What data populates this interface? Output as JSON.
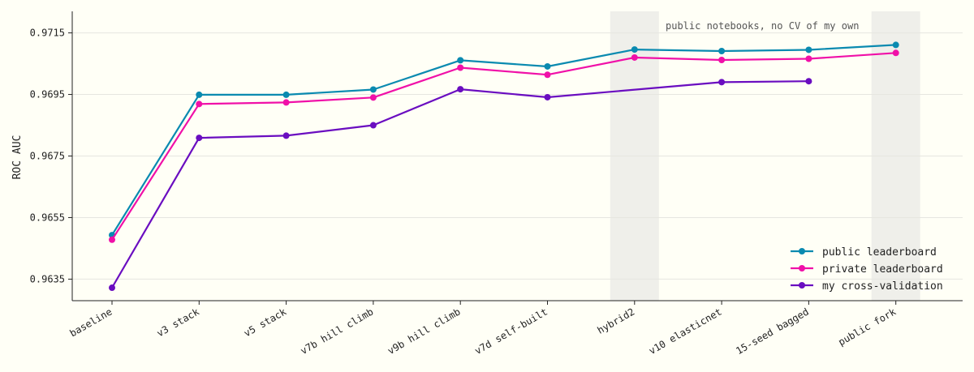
{
  "chart_data": {
    "type": "line",
    "title": "",
    "xlabel": "",
    "ylabel": "ROC AUC",
    "categories": [
      "baseline",
      "v3 stack",
      "v5 stack",
      "v7b hill climb",
      "v9b hill climb",
      "v7d self-built",
      "hybrid2",
      "v10 elasticnet",
      "15-seed bagged",
      "public fork"
    ],
    "ylim": [
      0.9628,
      0.9722
    ],
    "yticks": [
      "0.9635",
      "0.9655",
      "0.9675",
      "0.9695",
      "0.9715"
    ],
    "grid": "horizontal",
    "legend_position": "bottom-right",
    "highlighted_categories": [
      "hybrid2",
      "public fork"
    ],
    "annotation": "public notebooks, no CV of my own",
    "series": [
      {
        "name": "public leaderboard",
        "color": "#0a8ab0",
        "values": [
          0.96493,
          0.96949,
          0.96949,
          0.96966,
          0.97061,
          0.97041,
          0.97096,
          0.97091,
          0.97095,
          0.97111
        ]
      },
      {
        "name": "private leaderboard",
        "color": "#f010a8",
        "values": [
          0.96478,
          0.96919,
          0.96924,
          0.9694,
          0.97037,
          0.97014,
          0.9707,
          0.97062,
          0.97066,
          0.97085
        ]
      },
      {
        "name": "my cross-validation",
        "color": "#6a0dc0",
        "values": [
          0.96322,
          0.96809,
          0.96816,
          0.9685,
          0.96967,
          0.96941,
          null,
          0.9699,
          0.96993,
          null
        ]
      }
    ]
  }
}
